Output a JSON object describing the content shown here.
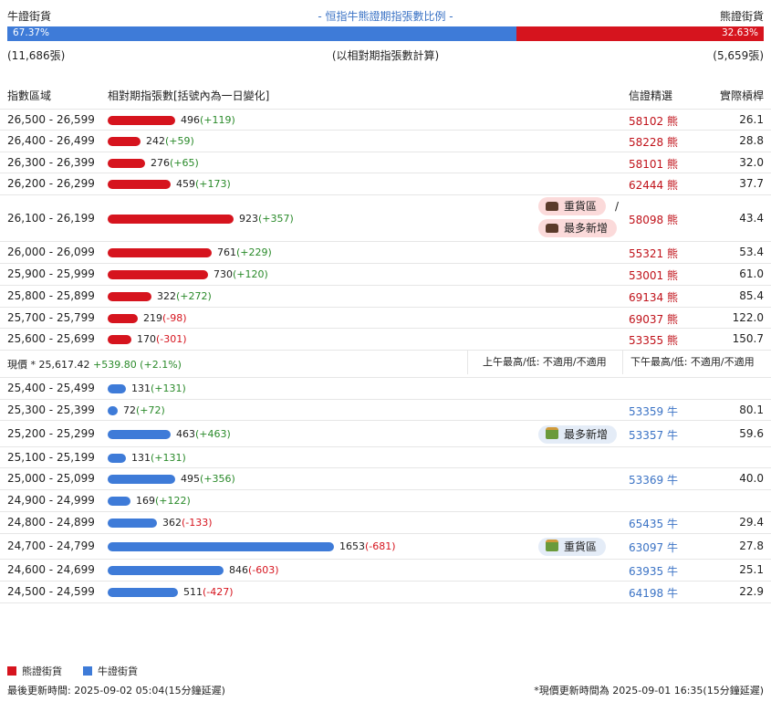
{
  "header": {
    "bull_label": "牛證街貨",
    "title": "- 恒指牛熊證期指張數比例 -",
    "bear_label": "熊證街貨",
    "bull_pct": "67.37%",
    "bear_pct": "32.63%",
    "bull_fraction": 0.6737,
    "bull_count": "(11,686張)",
    "note": "(以相對期指張數計算)",
    "bear_count": "(5,659張)"
  },
  "columns": {
    "range": "指數區域",
    "contracts": "相對期指張數[括號內為一日變化]",
    "selected": "信證精選",
    "leverage": "實際槓桿"
  },
  "colors": {
    "bear": "#d6141e",
    "bull": "#3e7bd8"
  },
  "bear_rows": [
    {
      "range": "26,500 - 26,599",
      "value": 496,
      "num": "496",
      "chg": "(+119)",
      "sign": "pos",
      "code": "58102 熊",
      "lev": "26.1"
    },
    {
      "range": "26,400 - 26,499",
      "value": 242,
      "num": "242",
      "chg": "(+59)",
      "sign": "pos",
      "code": "58228 熊",
      "lev": "28.8"
    },
    {
      "range": "26,300 - 26,399",
      "value": 276,
      "num": "276",
      "chg": "(+65)",
      "sign": "pos",
      "code": "58101 熊",
      "lev": "32.0"
    },
    {
      "range": "26,200 - 26,299",
      "value": 459,
      "num": "459",
      "chg": "(+173)",
      "sign": "pos",
      "code": "62444 熊",
      "lev": "37.7"
    },
    {
      "range": "26,100 - 26,199",
      "value": 923,
      "num": "923",
      "chg": "(+357)",
      "sign": "pos",
      "code": "58098 熊",
      "lev": "43.4",
      "tags": [
        "重貨區",
        "最多新增"
      ],
      "slash": "/"
    },
    {
      "range": "26,000 - 26,099",
      "value": 761,
      "num": "761",
      "chg": "(+229)",
      "sign": "pos",
      "code": "55321 熊",
      "lev": "53.4"
    },
    {
      "range": "25,900 - 25,999",
      "value": 730,
      "num": "730",
      "chg": "(+120)",
      "sign": "pos",
      "code": "53001 熊",
      "lev": "61.0"
    },
    {
      "range": "25,800 - 25,899",
      "value": 322,
      "num": "322",
      "chg": "(+272)",
      "sign": "pos",
      "code": "69134 熊",
      "lev": "85.4"
    },
    {
      "range": "25,700 - 25,799",
      "value": 219,
      "num": "219",
      "chg": "(-98)",
      "sign": "neg",
      "code": "69037 熊",
      "lev": "122.0"
    },
    {
      "range": "25,600 - 25,699",
      "value": 170,
      "num": "170",
      "chg": "(-301)",
      "sign": "neg",
      "code": "53355 熊",
      "lev": "150.7"
    }
  ],
  "price_row": {
    "label": "現價 *  25,617.42",
    "change": "+539.80 (+2.1%)",
    "am": "上午最高/低: 不適用/不適用",
    "pm": "下午最高/低: 不適用/不適用"
  },
  "bull_rows": [
    {
      "range": "25,400 - 25,499",
      "value": 131,
      "num": "131",
      "chg": "(+131)",
      "sign": "pos",
      "code": "",
      "lev": ""
    },
    {
      "range": "25,300 - 25,399",
      "value": 72,
      "num": "72",
      "chg": "(+72)",
      "sign": "pos",
      "code": "53359 牛",
      "lev": "80.1"
    },
    {
      "range": "25,200 - 25,299",
      "value": 463,
      "num": "463",
      "chg": "(+463)",
      "sign": "pos",
      "code": "53357 牛",
      "lev": "59.6",
      "tags": [
        "最多新增"
      ]
    },
    {
      "range": "25,100 - 25,199",
      "value": 131,
      "num": "131",
      "chg": "(+131)",
      "sign": "pos",
      "code": "",
      "lev": ""
    },
    {
      "range": "25,000 - 25,099",
      "value": 495,
      "num": "495",
      "chg": "(+356)",
      "sign": "pos",
      "code": "53369 牛",
      "lev": "40.0"
    },
    {
      "range": "24,900 - 24,999",
      "value": 169,
      "num": "169",
      "chg": "(+122)",
      "sign": "pos",
      "code": "",
      "lev": ""
    },
    {
      "range": "24,800 - 24,899",
      "value": 362,
      "num": "362",
      "chg": "(-133)",
      "sign": "neg",
      "code": "65435 牛",
      "lev": "29.4"
    },
    {
      "range": "24,700 - 24,799",
      "value": 1653,
      "num": "1653",
      "chg": "(-681)",
      "sign": "neg",
      "code": "63097 牛",
      "lev": "27.8",
      "tags": [
        "重貨區"
      ]
    },
    {
      "range": "24,600 - 24,699",
      "value": 846,
      "num": "846",
      "chg": "(-603)",
      "sign": "neg",
      "code": "63935 牛",
      "lev": "25.1"
    },
    {
      "range": "24,500 - 24,599",
      "value": 511,
      "num": "511",
      "chg": "(-427)",
      "sign": "neg",
      "code": "64198 牛",
      "lev": "22.9"
    }
  ],
  "legend": {
    "bear": "熊證街貨",
    "bull": "牛證街貨"
  },
  "footer": {
    "left": "最後更新時間: 2025-09-02 05:04(15分鐘延遲)",
    "right": "*現價更新時間為 2025-09-01 16:35(15分鐘延遲)"
  }
}
